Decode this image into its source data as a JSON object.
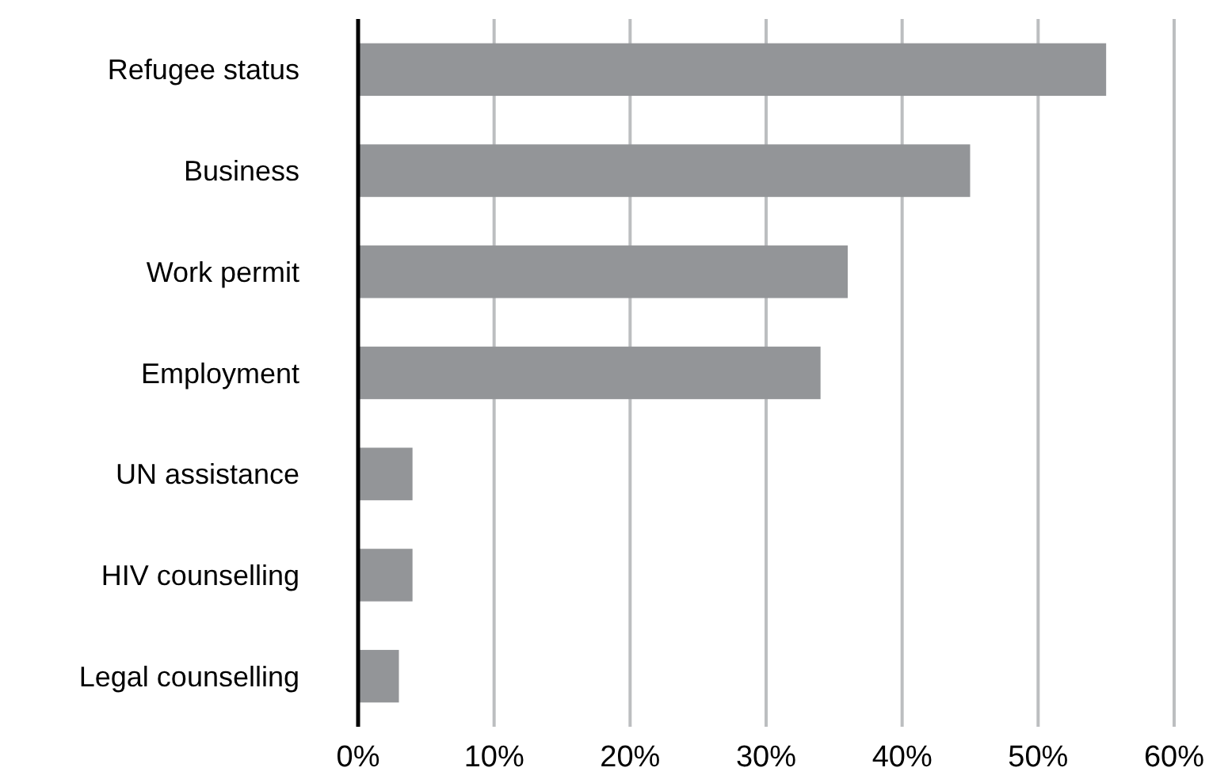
{
  "chart_data": {
    "type": "bar",
    "orientation": "horizontal",
    "categories": [
      "Refugee status",
      "Business",
      "Work permit",
      "Employment",
      "UN assistance",
      "HIV counselling",
      "Legal counselling"
    ],
    "values": [
      55,
      45,
      36,
      34,
      4,
      4,
      3
    ],
    "color": "#939598",
    "xlim": [
      0,
      60
    ],
    "xticks": [
      {
        "value": 0,
        "label": "0%"
      },
      {
        "value": 10,
        "label": "10%"
      },
      {
        "value": 20,
        "label": "20%"
      },
      {
        "value": 30,
        "label": "30%"
      },
      {
        "value": 40,
        "label": "40%"
      },
      {
        "value": 50,
        "label": "50%"
      },
      {
        "value": 60,
        "label": "60%"
      }
    ],
    "grid": "x"
  }
}
